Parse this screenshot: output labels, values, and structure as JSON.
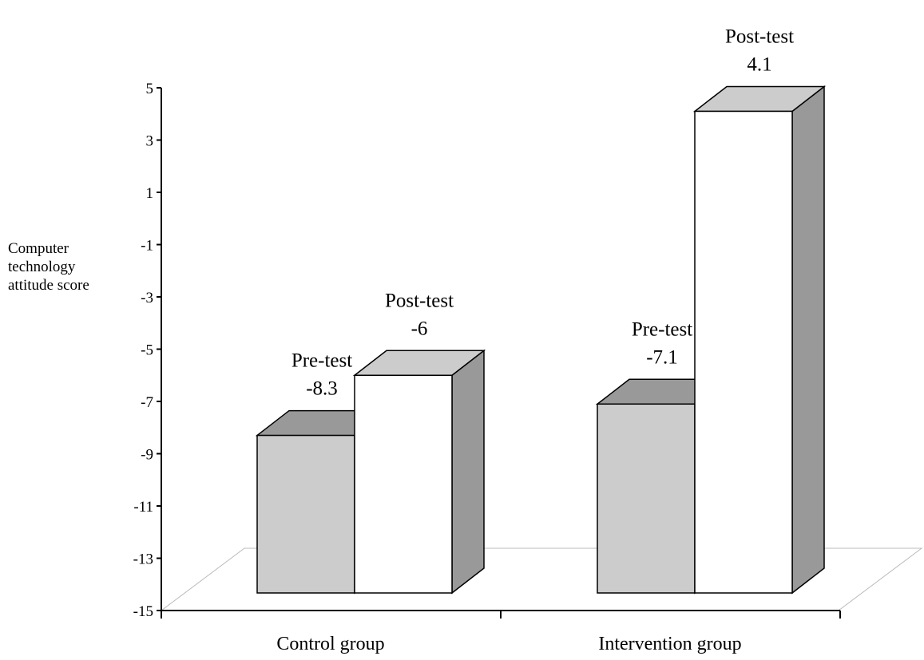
{
  "chart_data": {
    "type": "bar",
    "title": "",
    "xlabel": "",
    "ylabel_lines": [
      "Computer",
      "technology",
      "attitude score"
    ],
    "categories": [
      "Control group",
      "Intervention group"
    ],
    "series": [
      {
        "name": "Pre-test",
        "values": [
          -8.3,
          -7.1
        ]
      },
      {
        "name": "Post-test",
        "values": [
          -6,
          4.1
        ]
      }
    ],
    "bar_labels": [
      {
        "category": "Control group",
        "series": "Pre-test",
        "label": "Pre-test",
        "value_text": "-8.3"
      },
      {
        "category": "Control group",
        "series": "Post-test",
        "label": "Post-test",
        "value_text": "-6"
      },
      {
        "category": "Intervention group",
        "series": "Pre-test",
        "label": "Pre-test",
        "value_text": "-7.1"
      },
      {
        "category": "Intervention group",
        "series": "Post-test",
        "label": "Post-test",
        "value_text": "4.1"
      }
    ],
    "ylim": [
      -15,
      5
    ],
    "yticks": [
      5,
      3,
      1,
      -1,
      -3,
      -5,
      -7,
      -9,
      -11,
      -13,
      -15
    ],
    "grid": false,
    "legend": "none",
    "style": "3d",
    "colors": {
      "pre_front": "#cccccc",
      "pre_top": "#999999",
      "pre_side": "#999999",
      "post_front": "#ffffff",
      "post_top": "#cccccc",
      "post_side": "#999999"
    }
  }
}
